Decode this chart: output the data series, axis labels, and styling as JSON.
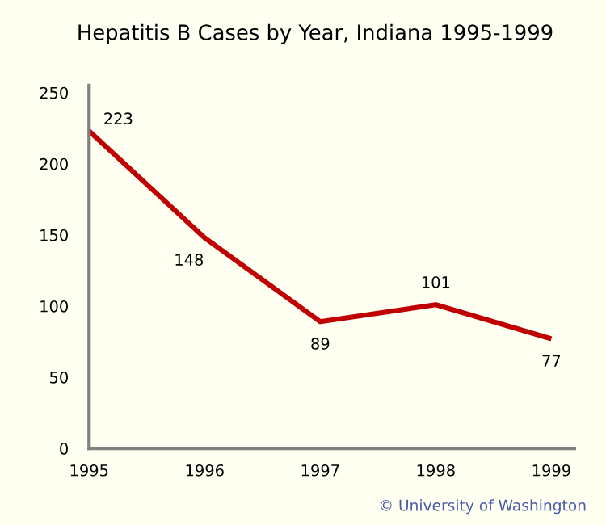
{
  "chart_data": {
    "type": "line",
    "title": "Hepatitis B Cases by Year, Indiana 1995-1999",
    "x": [
      1995,
      1996,
      1997,
      1998,
      1999
    ],
    "series": [
      {
        "color": "#c00000",
        "values": [
          223,
          148,
          89,
          101,
          77
        ]
      }
    ],
    "data_labels": true,
    "xlim": [
      1995,
      1999.2
    ],
    "xticks": [
      1995,
      1996,
      1997,
      1998,
      1999
    ],
    "ylim": [
      0,
      255
    ],
    "yticks": [
      0,
      50,
      100,
      150,
      200,
      250
    ],
    "grid": false,
    "marker": "none",
    "line_style": "solid",
    "annotations": [
      "© University of Washington"
    ]
  }
}
